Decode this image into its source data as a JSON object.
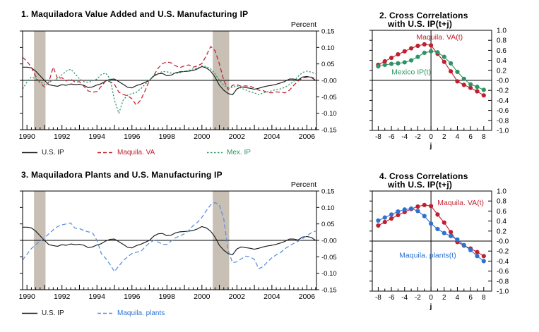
{
  "colors": {
    "axis": "#000000",
    "us_ip": "#1a1a1a",
    "maquila_va": "#c01f2e",
    "mex_ip": "#2e9465",
    "maquila_plants_line": "#5b8ed9",
    "maquila_plants_accent": "#2c72d0",
    "recession_band": "#c8c0b5",
    "background": "#ffffff"
  },
  "chart_data": [
    {
      "id": "panel1",
      "type": "line",
      "title": "1. Maquiladora Value Added and U.S. Manufacturing IP",
      "ylabel": "Percent",
      "xlim": [
        1989.75,
        2006.55
      ],
      "ylim": [
        -0.15,
        0.15
      ],
      "grid": false,
      "x_start": 1989.75,
      "x_step": 0.25,
      "xticks": {
        "values": [
          1990,
          1992,
          1994,
          1996,
          1998,
          2000,
          2002,
          2004,
          2006
        ],
        "labels": [
          "1990",
          "1992",
          "1994",
          "1996",
          "1998",
          "2000",
          "2002",
          "2004",
          "2006"
        ]
      },
      "yticks": {
        "values": [
          0.15,
          0.1,
          0.05,
          0,
          -0.05,
          -0.1,
          -0.15
        ],
        "labels": [
          "0.15",
          "0.10",
          "0.05",
          "-0.00",
          "-0.05",
          "-0.10",
          "-0.15"
        ]
      },
      "recessions": [
        [
          1990.4,
          1991.06
        ],
        [
          2000.62,
          2001.56
        ]
      ],
      "series": [
        {
          "name": "U.S. IP",
          "color": "#1a1a1a",
          "style": "solid",
          "values": [
            0.04,
            0.04,
            0.038,
            0.028,
            0.014,
            0.0,
            -0.013,
            -0.016,
            -0.018,
            -0.013,
            -0.015,
            -0.011,
            -0.013,
            -0.012,
            -0.015,
            -0.022,
            -0.02,
            -0.014,
            -0.01,
            -0.002,
            0.003,
            0.004,
            -0.004,
            -0.012,
            -0.021,
            -0.023,
            -0.016,
            -0.012,
            -0.006,
            0.0,
            0.013,
            0.02,
            0.021,
            0.014,
            0.016,
            0.023,
            0.026,
            0.027,
            0.028,
            0.03,
            0.035,
            0.042,
            0.038,
            0.028,
            0.01,
            -0.015,
            -0.03,
            -0.04,
            -0.044,
            -0.026,
            -0.02,
            -0.022,
            -0.024,
            -0.027,
            -0.024,
            -0.02,
            -0.017,
            -0.015,
            -0.012,
            -0.008,
            -0.003,
            0.004,
            0.004,
            0.001,
            0.01,
            0.012,
            0.009,
            0.0
          ]
        },
        {
          "name": "Maquila. VA",
          "color": "#c01f2e",
          "style": "dashed",
          "values": [
            0.07,
            0.058,
            0.04,
            0.012,
            -0.008,
            -0.02,
            -0.005,
            0.04,
            0.005,
            0.008,
            -0.002,
            0.004,
            -0.005,
            -0.004,
            -0.018,
            -0.032,
            -0.036,
            -0.034,
            -0.018,
            -0.002,
            -0.004,
            -0.012,
            -0.036,
            -0.043,
            -0.047,
            -0.056,
            -0.075,
            -0.06,
            -0.032,
            0.0,
            0.015,
            0.037,
            0.051,
            0.056,
            0.053,
            0.044,
            0.039,
            0.044,
            0.047,
            0.04,
            0.044,
            0.051,
            0.075,
            0.103,
            0.09,
            0.05,
            0.0,
            -0.028,
            -0.015,
            -0.013,
            -0.018,
            -0.017,
            -0.018,
            -0.023,
            -0.03,
            -0.031,
            -0.037,
            -0.038,
            -0.035,
            -0.036,
            -0.038,
            -0.03,
            -0.015,
            -0.002,
            0.007,
            0.009,
            0.01,
            0.005
          ]
        },
        {
          "name": "Mex. IP",
          "color": "#2e9465",
          "style": "dotted",
          "values": [
            -0.026,
            -0.005,
            0.01,
            0.005,
            -0.005,
            -0.012,
            -0.006,
            0.0,
            0.006,
            0.017,
            0.028,
            0.034,
            0.02,
            0.005,
            -0.004,
            -0.006,
            -0.002,
            0.004,
            0.018,
            0.022,
            0.005,
            -0.06,
            -0.1,
            -0.06,
            -0.045,
            -0.04,
            -0.037,
            -0.026,
            -0.012,
            0.0,
            0.016,
            0.021,
            0.027,
            0.026,
            0.022,
            0.021,
            0.023,
            0.028,
            0.03,
            0.035,
            0.037,
            0.044,
            0.042,
            0.035,
            0.02,
            0.0,
            -0.015,
            -0.022,
            -0.022,
            -0.016,
            -0.024,
            -0.029,
            -0.034,
            -0.038,
            -0.044,
            -0.038,
            -0.035,
            -0.032,
            -0.028,
            -0.026,
            -0.021,
            -0.013,
            -0.003,
            0.012,
            0.024,
            0.028,
            0.025,
            0.02
          ]
        }
      ]
    },
    {
      "id": "panel2",
      "type": "scatter",
      "title": "2. Cross Correlations with U.S. IP(t+j)",
      "title_lines": [
        "2. Cross Correlations",
        "with U.S. IP(t+j)"
      ],
      "xlabel": "j",
      "xlim": [
        -8.9,
        9.2
      ],
      "ylim": [
        -1.0,
        1.0
      ],
      "grid": false,
      "x": [
        -8,
        -7,
        -6,
        -5,
        -4,
        -3,
        -2,
        -1,
        0,
        1,
        2,
        3,
        4,
        5,
        6,
        7,
        8
      ],
      "xticks": {
        "values": [
          -8,
          -6,
          -4,
          -2,
          0,
          2,
          4,
          6,
          8
        ],
        "labels": [
          "-8",
          "-6",
          "-4",
          "-2",
          "0",
          "2",
          "4",
          "6",
          "8"
        ]
      },
      "yticks": {
        "values": [
          1.0,
          0.8,
          0.6,
          0.4,
          0.2,
          0,
          -0.2,
          -0.4,
          -0.6,
          -0.8,
          -1.0
        ],
        "labels": [
          "1.0",
          "0.8",
          "0.6",
          "0.4",
          "0.2",
          "-0.0",
          "-0.2",
          "-0.4",
          "-0.6",
          "-0.8",
          "-1.0"
        ]
      },
      "series": [
        {
          "name": "Maquila. VA(t)",
          "color": "#c01f2e",
          "label_pos": [
            1.3,
            0.82
          ],
          "values": [
            0.31,
            0.38,
            0.45,
            0.52,
            0.58,
            0.64,
            0.69,
            0.72,
            0.7,
            0.53,
            0.37,
            0.18,
            -0.02,
            -0.09,
            -0.15,
            -0.22,
            -0.3
          ]
        },
        {
          "name": "Mexico IP(t)",
          "color": "#2e9465",
          "label_pos": [
            -3.0,
            0.12
          ],
          "values": [
            0.28,
            0.31,
            0.33,
            0.34,
            0.36,
            0.4,
            0.47,
            0.55,
            0.58,
            0.56,
            0.47,
            0.34,
            0.17,
            0.03,
            -0.08,
            -0.13,
            -0.19
          ]
        }
      ]
    },
    {
      "id": "panel3",
      "type": "line",
      "title": "3. Maquiladora Plants and U.S. Manufacturing IP",
      "ylabel": "Percent",
      "xlim": [
        1989.75,
        2006.55
      ],
      "ylim": [
        -0.15,
        0.15
      ],
      "grid": false,
      "x_start": 1989.75,
      "x_step": 0.25,
      "xticks": {
        "values": [
          1990,
          1992,
          1994,
          1996,
          1998,
          2000,
          2002,
          2004,
          2006
        ],
        "labels": [
          "1990",
          "1992",
          "1994",
          "1996",
          "1998",
          "2000",
          "2002",
          "2004",
          "2006"
        ]
      },
      "yticks": {
        "values": [
          0.15,
          0.1,
          0.05,
          0,
          -0.05,
          -0.1,
          -0.15
        ],
        "labels": [
          "0.15",
          "0.10",
          "0.05",
          "-0.00",
          "-0.05",
          "-0.10",
          "-0.15"
        ]
      },
      "recessions": [
        [
          1990.4,
          1991.06
        ],
        [
          2000.62,
          2001.56
        ]
      ],
      "series": [
        {
          "name": "U.S. IP",
          "color": "#1a1a1a",
          "style": "solid",
          "values": [
            0.04,
            0.04,
            0.038,
            0.028,
            0.014,
            0.0,
            -0.013,
            -0.016,
            -0.018,
            -0.013,
            -0.015,
            -0.011,
            -0.013,
            -0.012,
            -0.015,
            -0.022,
            -0.02,
            -0.014,
            -0.01,
            -0.002,
            0.003,
            0.004,
            -0.004,
            -0.012,
            -0.021,
            -0.023,
            -0.016,
            -0.012,
            -0.006,
            0.0,
            0.013,
            0.02,
            0.021,
            0.014,
            0.016,
            0.023,
            0.026,
            0.027,
            0.028,
            0.03,
            0.035,
            0.042,
            0.038,
            0.028,
            0.01,
            -0.015,
            -0.03,
            -0.04,
            -0.044,
            -0.026,
            -0.02,
            -0.022,
            -0.024,
            -0.027,
            -0.024,
            -0.02,
            -0.017,
            -0.015,
            -0.012,
            -0.008,
            -0.003,
            0.004,
            0.004,
            0.001,
            0.01,
            0.012,
            0.009,
            0.0
          ]
        },
        {
          "name": "Maquila. plants",
          "color": "#5b8ed9",
          "label_color": "#2c72d0",
          "style": "dashed",
          "values": [
            -0.06,
            -0.042,
            -0.025,
            -0.013,
            -0.003,
            0.008,
            0.02,
            0.032,
            0.042,
            0.047,
            0.05,
            0.053,
            0.037,
            0.036,
            0.03,
            0.026,
            0.023,
            0.0,
            -0.04,
            -0.055,
            -0.073,
            -0.095,
            -0.078,
            -0.062,
            -0.05,
            -0.04,
            -0.036,
            -0.034,
            -0.02,
            -0.008,
            0.0,
            -0.005,
            -0.012,
            -0.012,
            -0.002,
            0.008,
            0.014,
            0.02,
            0.03,
            0.045,
            0.055,
            0.07,
            0.09,
            0.108,
            0.115,
            0.108,
            0.065,
            -0.03,
            -0.068,
            -0.065,
            -0.056,
            -0.048,
            -0.05,
            -0.058,
            -0.086,
            -0.08,
            -0.065,
            -0.053,
            -0.044,
            -0.037,
            -0.025,
            -0.017,
            -0.009,
            -0.003,
            0.005,
            0.014,
            0.023,
            0.028
          ]
        }
      ]
    },
    {
      "id": "panel4",
      "type": "scatter",
      "title": "4. Cross Correlations with U.S. IP(t+j)",
      "title_lines": [
        "4. Cross Correlations",
        "with U.S. IP(t+j)"
      ],
      "xlabel": "j",
      "xlim": [
        -8.9,
        9.2
      ],
      "ylim": [
        -1.0,
        1.0
      ],
      "grid": false,
      "x": [
        -8,
        -7,
        -6,
        -5,
        -4,
        -3,
        -2,
        -1,
        0,
        1,
        2,
        3,
        4,
        5,
        6,
        7,
        8
      ],
      "xticks": {
        "values": [
          -8,
          -6,
          -4,
          -2,
          0,
          2,
          4,
          6,
          8
        ],
        "labels": [
          "-8",
          "-6",
          "-4",
          "-2",
          "0",
          "2",
          "4",
          "6",
          "8"
        ]
      },
      "yticks": {
        "values": [
          1.0,
          0.8,
          0.6,
          0.4,
          0.2,
          0,
          -0.2,
          -0.4,
          -0.6,
          -0.8,
          -1.0
        ],
        "labels": [
          "1.0",
          "0.8",
          "0.6",
          "0.4",
          "0.2",
          "-0.0",
          "-0.2",
          "-0.4",
          "-0.6",
          "-0.8",
          "-1.0"
        ]
      },
      "series": [
        {
          "name": "Maquila. VA(t)",
          "color": "#c01f2e",
          "label_pos": [
            4.5,
            0.72
          ],
          "values": [
            0.31,
            0.38,
            0.45,
            0.52,
            0.58,
            0.64,
            0.69,
            0.72,
            0.7,
            0.53,
            0.37,
            0.18,
            -0.02,
            -0.09,
            -0.15,
            -0.22,
            -0.3
          ]
        },
        {
          "name": "Maquila. plants(t)",
          "color": "#2c72d0",
          "label_pos": [
            -0.5,
            -0.33
          ],
          "values": [
            0.41,
            0.47,
            0.53,
            0.59,
            0.63,
            0.65,
            0.6,
            0.5,
            0.35,
            0.24,
            0.16,
            0.1,
            0.03,
            -0.08,
            -0.18,
            -0.3,
            -0.4
          ]
        }
      ]
    }
  ]
}
